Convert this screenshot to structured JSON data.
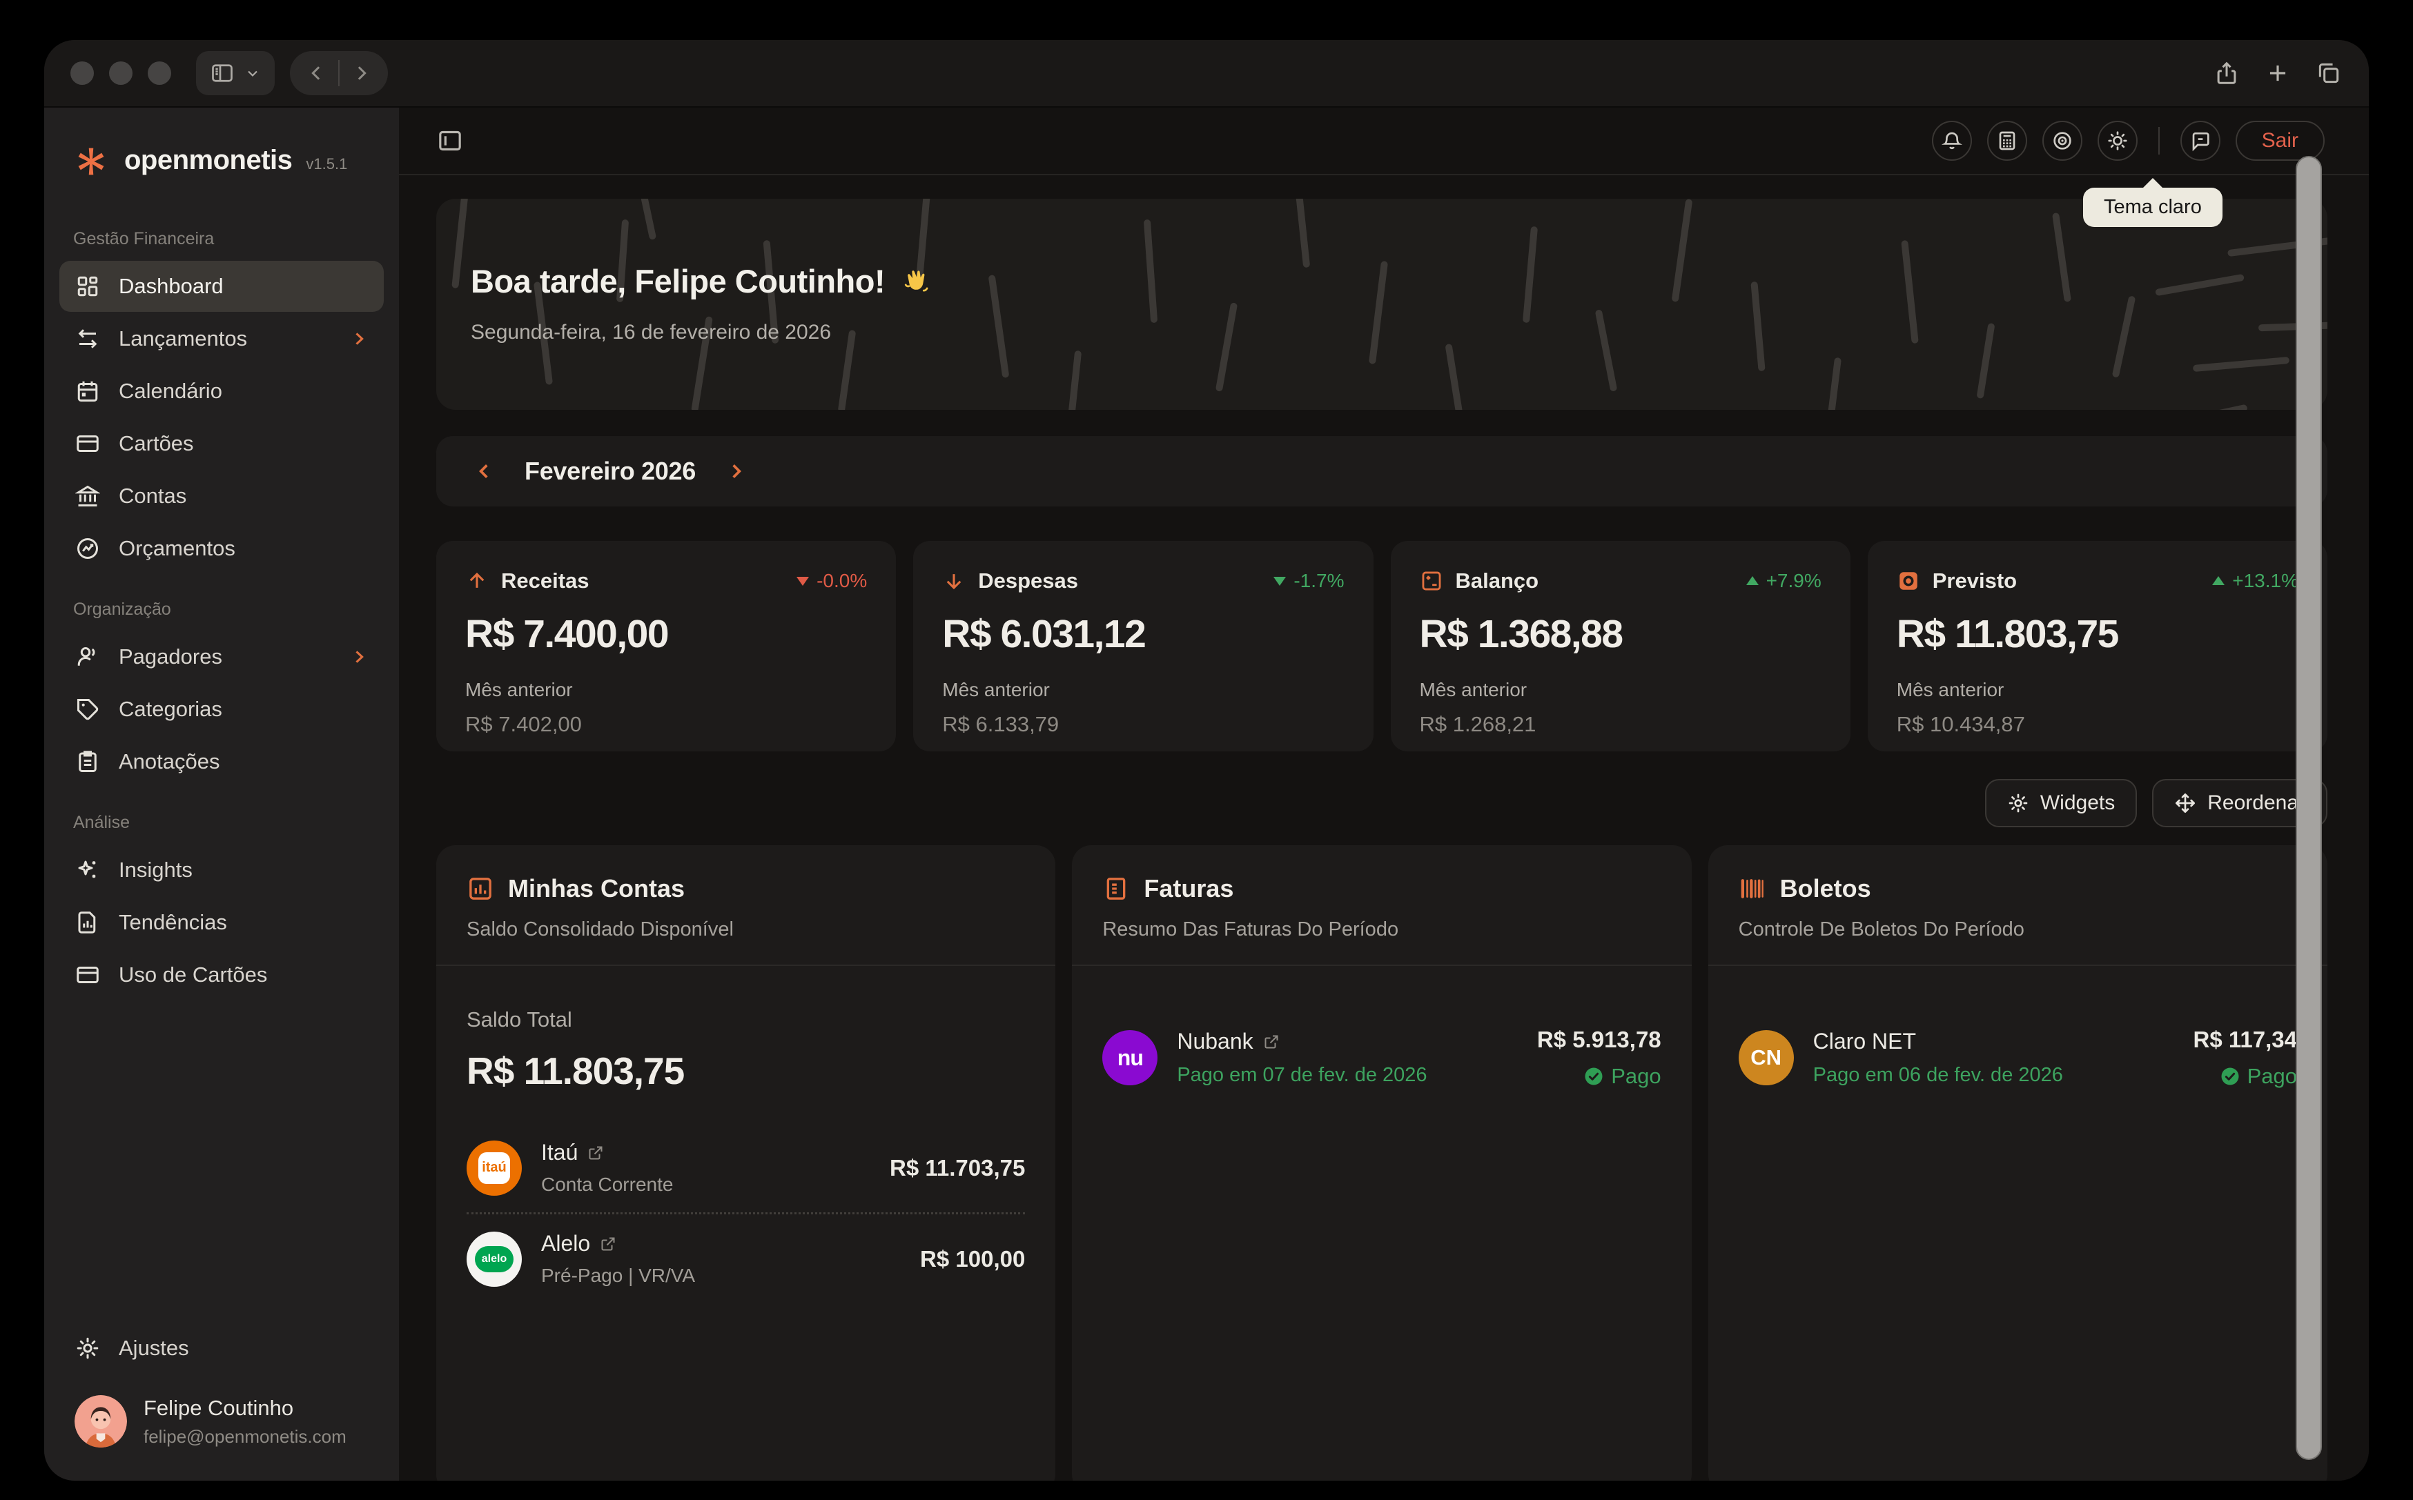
{
  "titlebar": {
    "traffic_lights": [
      "close",
      "minimize",
      "zoom"
    ],
    "right_icons": [
      "share-icon",
      "plus-icon",
      "tabs-icon"
    ]
  },
  "sidebar": {
    "brand": "openmonetis",
    "version": "v1.5.1",
    "sections": [
      {
        "label": "Gestão Financeira",
        "items": [
          {
            "label": "Dashboard",
            "icon": "dashboard-grid-icon",
            "active": true
          },
          {
            "label": "Lançamentos",
            "icon": "transactions-icon",
            "has_submenu": true
          },
          {
            "label": "Calendário",
            "icon": "calendar-icon"
          },
          {
            "label": "Cartões",
            "icon": "credit-card-icon"
          },
          {
            "label": "Contas",
            "icon": "bank-icon"
          },
          {
            "label": "Orçamentos",
            "icon": "budget-icon"
          }
        ]
      },
      {
        "label": "Organização",
        "items": [
          {
            "label": "Pagadores",
            "icon": "users-icon",
            "has_submenu": true
          },
          {
            "label": "Categorias",
            "icon": "tag-icon"
          },
          {
            "label": "Anotações",
            "icon": "clipboard-icon"
          }
        ]
      },
      {
        "label": "Análise",
        "items": [
          {
            "label": "Insights",
            "icon": "sparkles-icon"
          },
          {
            "label": "Tendências",
            "icon": "file-chart-icon"
          },
          {
            "label": "Uso de Cartões",
            "icon": "card-usage-icon"
          }
        ]
      }
    ],
    "settings_label": "Ajustes",
    "user": {
      "name": "Felipe Coutinho",
      "email": "felipe@openmonetis.com"
    }
  },
  "header": {
    "icons": [
      "bell-icon",
      "calculator-icon",
      "focus-icon",
      "sun-icon",
      "chat-icon"
    ],
    "logout_label": "Sair",
    "theme_tooltip": "Tema claro"
  },
  "main": {
    "greeting": {
      "title": "Boa tarde, Felipe Coutinho!",
      "emoji": "👋",
      "date": "Segunda-feira, 16 de fevereiro de 2026"
    },
    "month_selector": {
      "label": "Fevereiro 2026"
    },
    "stats": [
      {
        "label": "Receitas",
        "icon": "arrow-up-icon",
        "delta": "-0.0%",
        "trend": "down",
        "trend_color": "negative",
        "value": "R$ 7.400,00",
        "previous_label": "Mês anterior",
        "previous_value": "R$ 7.402,00"
      },
      {
        "label": "Despesas",
        "icon": "arrow-down-icon",
        "delta": "-1.7%",
        "trend": "down",
        "trend_color": "positive",
        "value": "R$ 6.031,12",
        "previous_label": "Mês anterior",
        "previous_value": "R$ 6.133,79"
      },
      {
        "label": "Balanço",
        "icon": "plus-minus-icon",
        "delta": "+7.9%",
        "trend": "up",
        "trend_color": "positive",
        "value": "R$ 1.368,88",
        "previous_label": "Mês anterior",
        "previous_value": "R$ 1.268,21"
      },
      {
        "label": "Previsto",
        "icon": "target-icon",
        "delta": "+13.1%",
        "trend": "up",
        "trend_color": "positive",
        "value": "R$ 11.803,75",
        "previous_label": "Mês anterior",
        "previous_value": "R$ 10.434,87"
      }
    ],
    "actions": {
      "widgets": "Widgets",
      "reorder": "Reordenar"
    },
    "widgets": {
      "accounts": {
        "icon": "bar-chart-icon",
        "title": "Minhas Contas",
        "subtitle": "Saldo Consolidado Disponível",
        "total_label": "Saldo Total",
        "total_value": "R$ 11.803,75",
        "rows": [
          {
            "name": "Itaú",
            "logo_text": "itaú",
            "detail": "Conta Corrente",
            "value": "R$ 11.703,75"
          },
          {
            "name": "Alelo",
            "logo_text": "alelo",
            "detail": "Pré-Pago | VR/VA",
            "value": "R$ 100,00"
          }
        ]
      },
      "invoices": {
        "icon": "receipt-icon",
        "title": "Faturas",
        "subtitle": "Resumo Das Faturas Do Período",
        "rows": [
          {
            "name": "Nubank",
            "logo_text": "nu",
            "status": "Pago em 07 de fev. de 2026",
            "value": "R$ 5.913,78",
            "badge": "Pago"
          }
        ]
      },
      "bills": {
        "icon": "barcode-icon",
        "title": "Boletos",
        "subtitle": "Controle De Boletos Do Período",
        "rows": [
          {
            "name": "Claro NET",
            "logo_text": "CN",
            "status": "Pago em 06 de fev. de 2026",
            "value": "R$ 117,34",
            "badge": "Pago"
          }
        ]
      }
    }
  },
  "colors": {
    "accent_orange": "#e2703f",
    "positive_green": "#3da35f",
    "negative_red": "#e05a46",
    "logout_red": "#e2614c",
    "tooltip_bg": "#edeadf",
    "card_bg": "#1d1b1a",
    "sidebar_bg": "#222020",
    "main_bg": "#141211"
  }
}
